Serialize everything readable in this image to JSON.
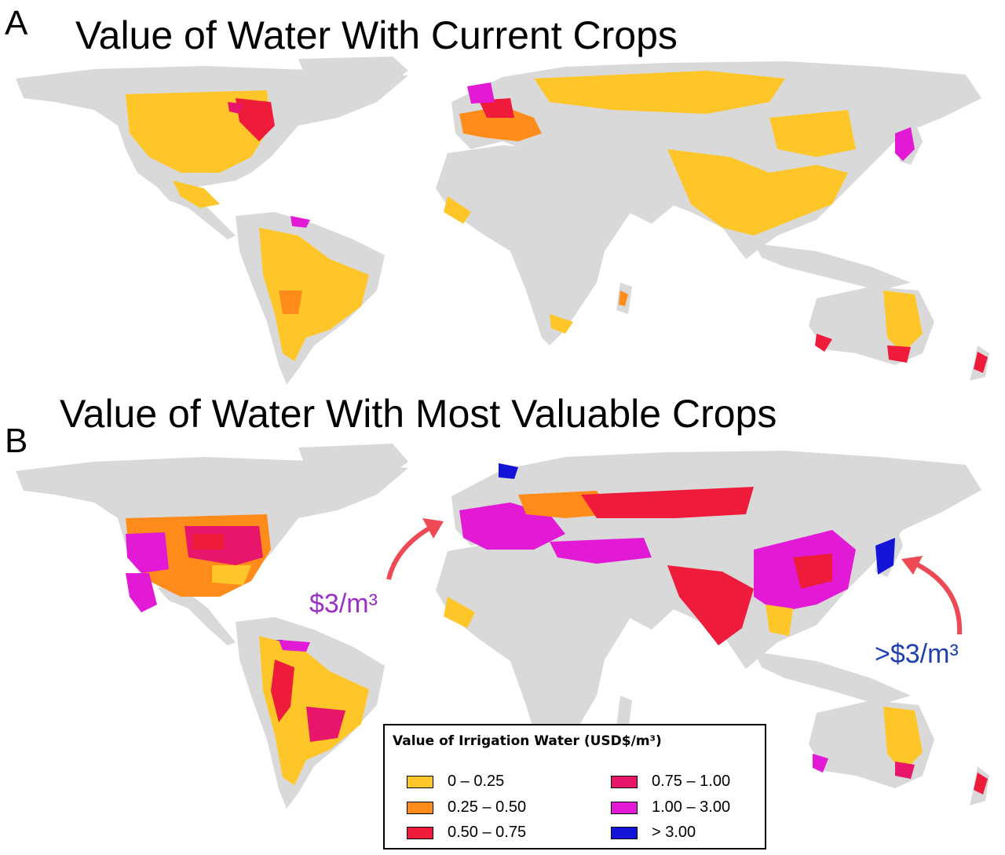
{
  "panel_a": {
    "letter": "A",
    "title": "Value of Water With Current Crops"
  },
  "panel_b": {
    "letter": "B",
    "title": "Value of Water With Most Valuable Crops"
  },
  "annotations": {
    "europe_label": "$3/m³",
    "japan_label": ">$3/m³",
    "europe_color": "#9b30c8",
    "japan_color": "#1f3fb0",
    "arrow_color": "#ee4a55"
  },
  "legend": {
    "title": "Value of Irrigation Water (USD$/m³)",
    "items": [
      {
        "label": "0 – 0.25",
        "color": "#ffc629"
      },
      {
        "label": "0.25 – 0.50",
        "color": "#ff8c1a"
      },
      {
        "label": "0.50 – 0.75",
        "color": "#ee1c3a"
      },
      {
        "label": "0.75 – 1.00",
        "color": "#e8166a"
      },
      {
        "label": "1.00 – 3.00",
        "color": "#e21ad6"
      },
      {
        "label": "> 3.00",
        "color": "#1414d8"
      }
    ]
  },
  "colors": {
    "land": "#d9d9d9",
    "ocean": "#ffffff",
    "border": "#9a9a9a"
  }
}
